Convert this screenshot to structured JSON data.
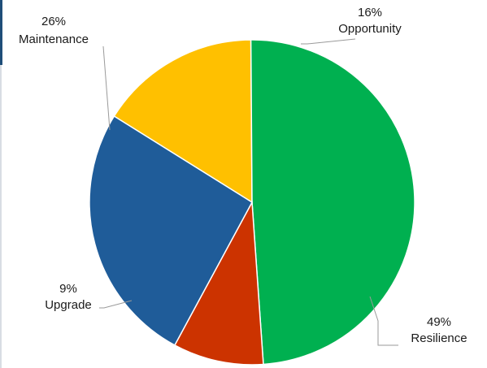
{
  "chart_data": {
    "type": "pie",
    "slices": [
      {
        "label": "Opportunity",
        "pct_label": "16%",
        "value": 16,
        "color": "#FFC000"
      },
      {
        "label": "Resilience",
        "pct_label": "49%",
        "value": 49,
        "color": "#00B050"
      },
      {
        "label": "Upgrade",
        "pct_label": "9%",
        "value": 9,
        "color": "#CC3300"
      },
      {
        "label": "Maintenance",
        "pct_label": "26%",
        "value": 26,
        "color": "#1F5C99"
      }
    ]
  }
}
